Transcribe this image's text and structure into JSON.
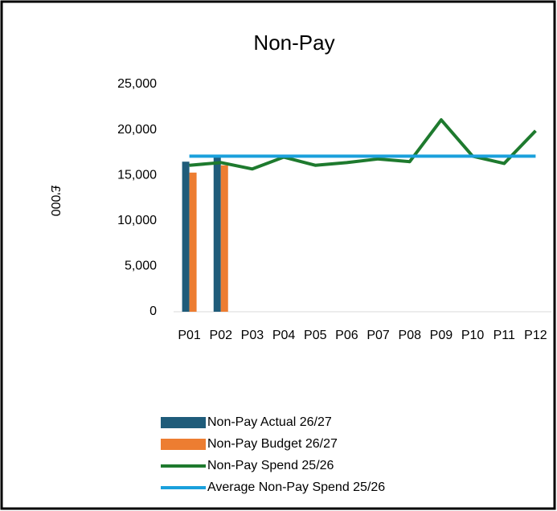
{
  "chart_data": {
    "type": "combo",
    "title": "Non-Pay",
    "y_label": "£'000",
    "categories": [
      "P01",
      "P02",
      "P03",
      "P04",
      "P05",
      "P06",
      "P07",
      "P08",
      "P09",
      "P10",
      "P11",
      "P12"
    ],
    "series": [
      {
        "name": "Non-Pay Actual 26/27",
        "type": "bar",
        "color": "#1f5c7a",
        "values": [
          16500,
          17200,
          null,
          null,
          null,
          null,
          null,
          null,
          null,
          null,
          null,
          null
        ]
      },
      {
        "name": "Non-Pay Budget 26/27",
        "type": "bar",
        "color": "#ed7d31",
        "values": [
          15300,
          16100,
          null,
          null,
          null,
          null,
          null,
          null,
          null,
          null,
          null,
          null
        ]
      },
      {
        "name": "Non-Pay Spend 25/26",
        "type": "line",
        "color": "#1e7a2e",
        "values": [
          16100,
          16400,
          15700,
          17000,
          16100,
          16400,
          16800,
          16500,
          21100,
          17100,
          16300,
          19900
        ]
      },
      {
        "name": "Average Non-Pay Spend 25/26",
        "type": "line",
        "color": "#1aa0dc",
        "values": [
          17100,
          17100,
          17100,
          17100,
          17100,
          17100,
          17100,
          17100,
          17100,
          17100,
          17100,
          17100
        ]
      }
    ],
    "ylim": [
      0,
      25000
    ],
    "yticks": [
      0,
      {
        "value": 5000,
        "label": "5,000"
      },
      {
        "value": 10000,
        "label": "10,000"
      },
      {
        "value": 15000,
        "label": "15,000"
      },
      {
        "value": 20000,
        "label": "20,000"
      },
      {
        "value": 25000,
        "label": "25,000"
      }
    ],
    "grid": false,
    "legend": "bottom"
  }
}
